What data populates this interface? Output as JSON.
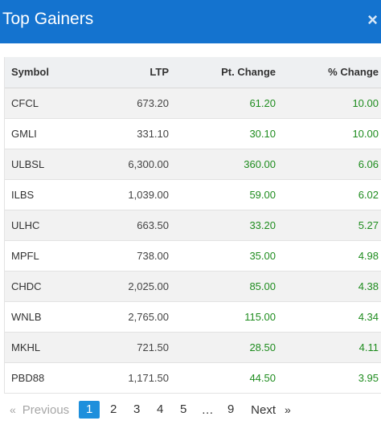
{
  "header": {
    "title": "Top Gainers",
    "close_icon": "×"
  },
  "table": {
    "columns": [
      "Symbol",
      "LTP",
      "Pt. Change",
      "% Change"
    ],
    "rows": [
      {
        "symbol": "CFCL",
        "ltp": "673.20",
        "pt": "61.20",
        "pct": "10.00"
      },
      {
        "symbol": "GMLI",
        "ltp": "331.10",
        "pt": "30.10",
        "pct": "10.00"
      },
      {
        "symbol": "ULBSL",
        "ltp": "6,300.00",
        "pt": "360.00",
        "pct": "6.06"
      },
      {
        "symbol": "ILBS",
        "ltp": "1,039.00",
        "pt": "59.00",
        "pct": "6.02"
      },
      {
        "symbol": "ULHC",
        "ltp": "663.50",
        "pt": "33.20",
        "pct": "5.27"
      },
      {
        "symbol": "MPFL",
        "ltp": "738.00",
        "pt": "35.00",
        "pct": "4.98"
      },
      {
        "symbol": "CHDC",
        "ltp": "2,025.00",
        "pt": "85.00",
        "pct": "4.38"
      },
      {
        "symbol": "WNLB",
        "ltp": "2,765.00",
        "pt": "115.00",
        "pct": "4.34"
      },
      {
        "symbol": "MKHL",
        "ltp": "721.50",
        "pt": "28.50",
        "pct": "4.11"
      },
      {
        "symbol": "PBD88",
        "ltp": "1,171.50",
        "pt": "44.50",
        "pct": "3.95"
      }
    ]
  },
  "pagination": {
    "prev_arrow": "«",
    "previous": "Previous",
    "pages": [
      "1",
      "2",
      "3",
      "4",
      "5"
    ],
    "ellipsis": "…",
    "last_page": "9",
    "next": "Next",
    "next_arrow": "»",
    "active_page": "1"
  },
  "colors": {
    "header_bg": "#1473cf",
    "positive": "#1e8c1e",
    "active_page": "#1e8fdc"
  }
}
